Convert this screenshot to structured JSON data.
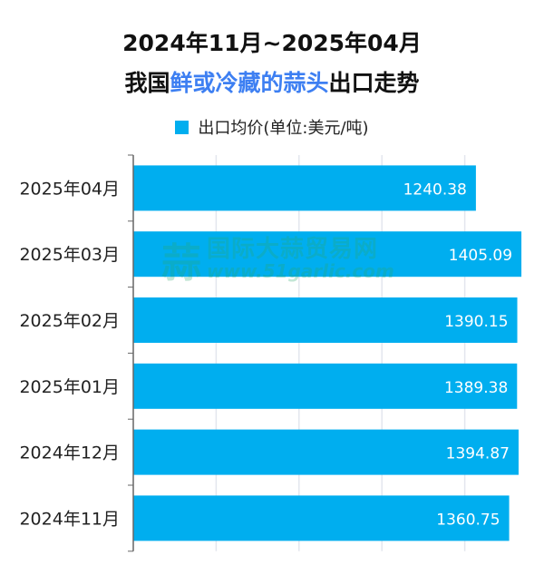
{
  "title": {
    "line1": "2024年11月~2025年04月",
    "line2_prefix": "我国",
    "line2_highlight": "鲜或冷藏的蒜头",
    "line2_suffix": "出口走势"
  },
  "watermark": {
    "name": "国际大蒜贸易网",
    "url": "www.51garlic.com"
  },
  "colors": {
    "bar": "#00aeef",
    "highlight": "#3d7ff2",
    "grid": "#e3e6ee",
    "axis": "#666666"
  },
  "chart_data": {
    "type": "bar",
    "orientation": "horizontal",
    "categories": [
      "2025年04月",
      "2025年03月",
      "2025年02月",
      "2025年01月",
      "2024年12月",
      "2024年11月"
    ],
    "series": [
      {
        "name": "出口均价(单位:美元/吨)",
        "values": [
          1240.38,
          1405.09,
          1390.15,
          1389.38,
          1394.87,
          1360.75
        ]
      }
    ],
    "data_labels": [
      "1240.38",
      "1405.09",
      "1390.15",
      "1389.38",
      "1394.87",
      "1360.75"
    ],
    "xlim": [
      0,
      1500
    ],
    "x_gridlines": [
      300,
      600,
      900,
      1200
    ],
    "grid": true,
    "legend_position": "top-center"
  }
}
